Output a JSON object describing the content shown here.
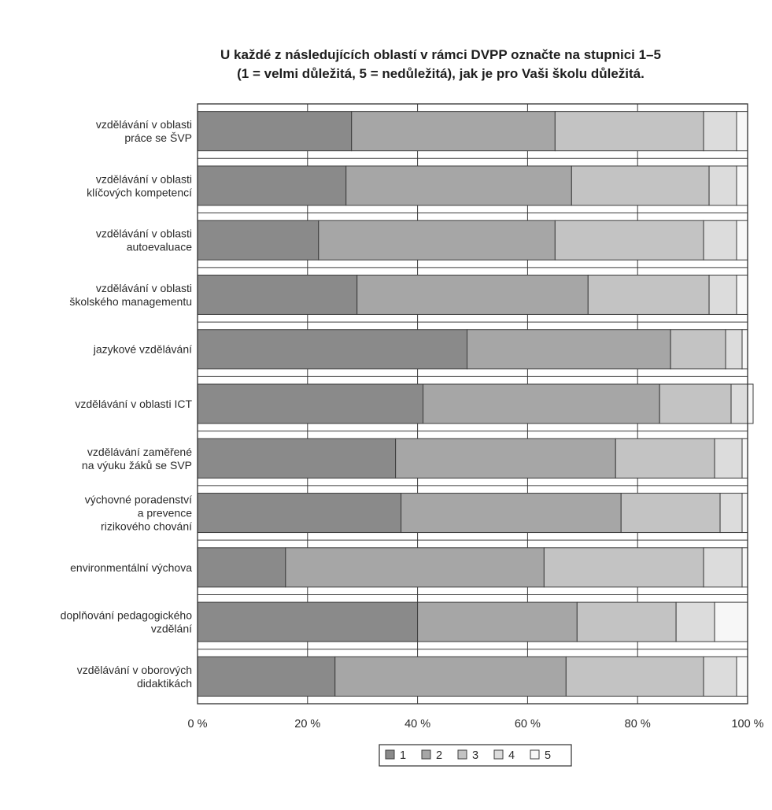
{
  "chart_data": {
    "type": "bar",
    "orientation": "horizontal",
    "stacked": true,
    "title": [
      "U každé z následujících oblastí v rámci DVPP označte na stupnici 1–5",
      "(1 = velmi důležitá, 5 = nedůležitá), jak je pro Vaši školu důležitá."
    ],
    "categories": [
      [
        "vzdělávání v oblasti",
        "práce se ŠVP"
      ],
      [
        "vzdělávání v oblasti",
        "klíčových kompetencí"
      ],
      [
        "vzdělávání v oblasti",
        "autoevaluace"
      ],
      [
        "vzdělávání v oblasti",
        "školského managementu"
      ],
      [
        "jazykové vzdělávání"
      ],
      [
        "vzdělávání v oblasti ICT"
      ],
      [
        "vzdělávání zaměřené",
        "na výuku žáků se SVP"
      ],
      [
        "výchovné poradenství",
        "a prevence",
        "rizikového chování"
      ],
      [
        "environmentální výchova"
      ],
      [
        "doplňování pedagogického",
        "vzdělání"
      ],
      [
        "vzdělávání v oborových",
        "didaktikách"
      ]
    ],
    "series": [
      {
        "name": "1",
        "color": "#8a8a8a",
        "values": [
          28,
          27,
          22,
          29,
          49,
          41,
          36,
          37,
          16,
          40,
          25
        ]
      },
      {
        "name": "2",
        "color": "#a6a6a6",
        "values": [
          37,
          41,
          43,
          42,
          37,
          43,
          40,
          40,
          47,
          29,
          42
        ]
      },
      {
        "name": "3",
        "color": "#c3c3c3",
        "values": [
          27,
          25,
          27,
          22,
          10,
          13,
          18,
          18,
          29,
          18,
          25
        ]
      },
      {
        "name": "4",
        "color": "#dcdcdc",
        "values": [
          6,
          5,
          6,
          5,
          3,
          3,
          5,
          4,
          7,
          7,
          6
        ]
      },
      {
        "name": "5",
        "color": "#f7f7f7",
        "values": [
          2,
          2,
          2,
          2,
          1,
          1,
          1,
          1,
          1,
          6,
          2
        ]
      }
    ],
    "x_ticks": [
      "0 %",
      "20 %",
      "40 %",
      "60 %",
      "80 %",
      "100 %"
    ],
    "xlim": [
      0,
      100
    ],
    "unit": "%",
    "grid": true,
    "legend": "bottom"
  }
}
